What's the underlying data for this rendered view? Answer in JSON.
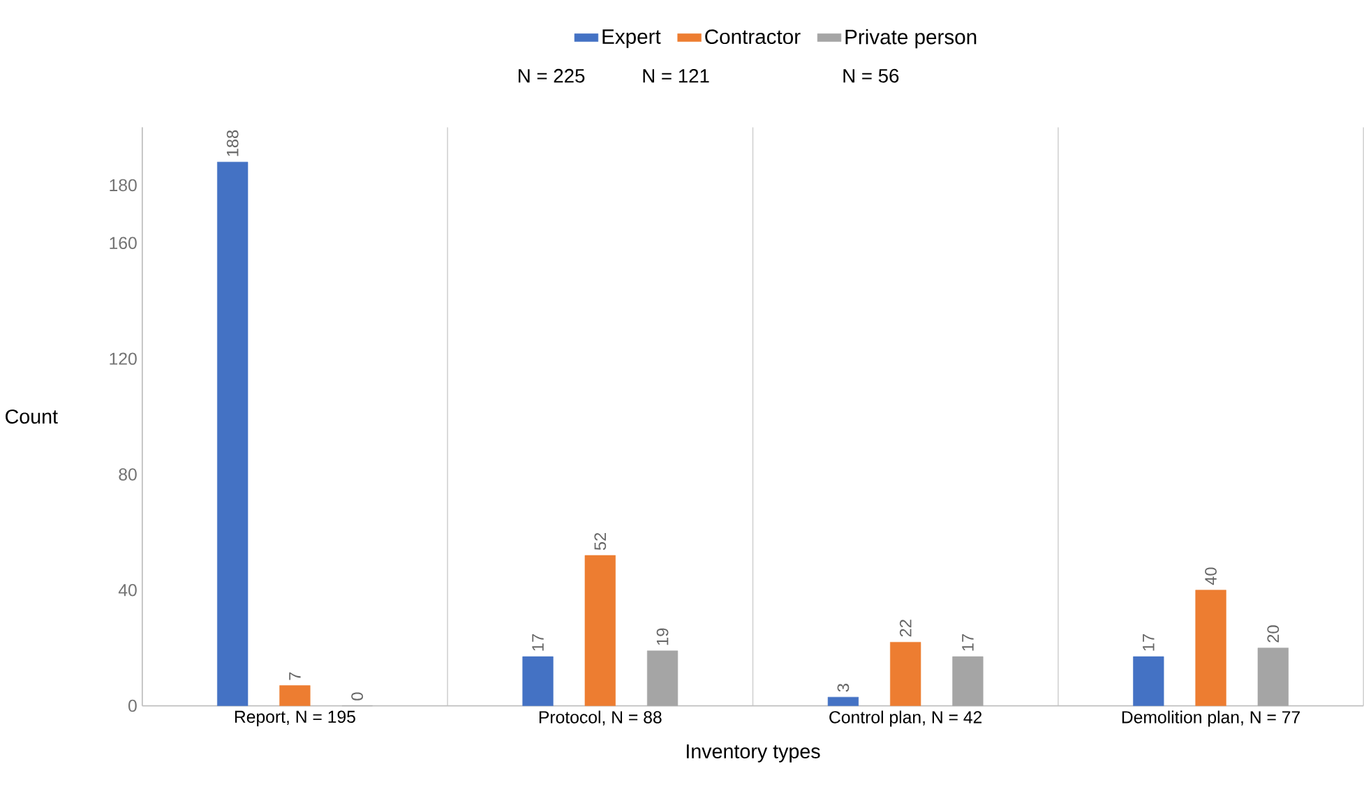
{
  "chart_data": {
    "type": "bar",
    "xlabel": "Inventory types",
    "ylabel": "Count",
    "categories": [
      "Report, N = 195",
      "Protocol, N = 88",
      "Control plan, N = 42",
      "Demolition plan, N = 77"
    ],
    "series": [
      {
        "name": "Expert",
        "color": "#4472c4",
        "values": [
          188,
          17,
          3,
          17
        ]
      },
      {
        "name": "Contractor",
        "color": "#ed7d31",
        "values": [
          7,
          52,
          22,
          40
        ]
      },
      {
        "name": "Private person",
        "color": "#a5a5a5",
        "values": [
          0,
          19,
          17,
          20
        ]
      }
    ],
    "annotations": [
      "N = 225",
      "N = 121",
      "N = 56"
    ],
    "ylim": [
      0,
      200
    ],
    "yticks": [
      0,
      40,
      80,
      120,
      160,
      180
    ],
    "data_labels": true,
    "grid": "x",
    "legend": "top"
  }
}
